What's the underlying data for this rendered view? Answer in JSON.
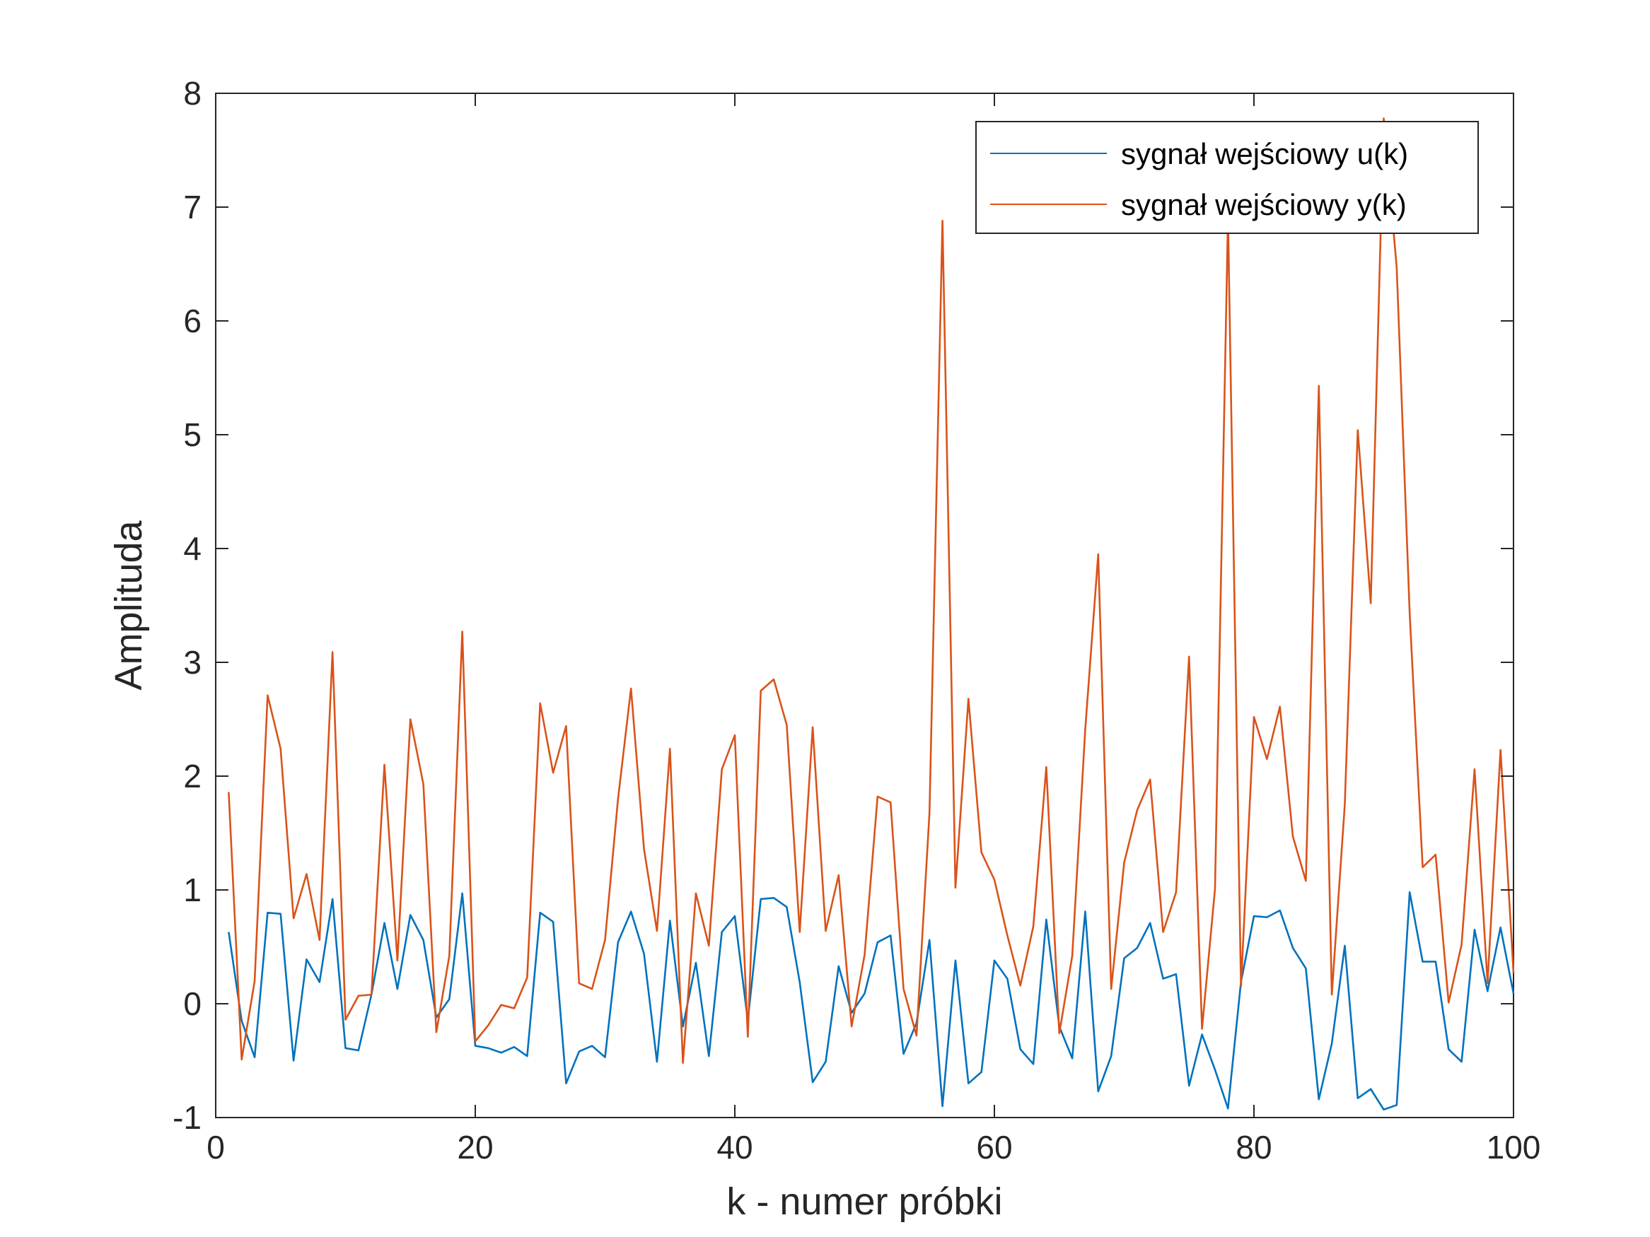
{
  "chart_data": {
    "type": "line",
    "title": "",
    "xlabel": "k - numer próbki",
    "ylabel": "Amplituda",
    "xlim": [
      0,
      100
    ],
    "ylim": [
      -1,
      8
    ],
    "xticks": [
      0,
      20,
      40,
      60,
      80,
      100
    ],
    "yticks": [
      -1,
      0,
      1,
      2,
      3,
      4,
      5,
      6,
      7,
      8
    ],
    "grid": false,
    "legend_position": "top-right",
    "x": [
      1,
      2,
      3,
      4,
      5,
      6,
      7,
      8,
      9,
      10,
      11,
      12,
      13,
      14,
      15,
      16,
      17,
      18,
      19,
      20,
      21,
      22,
      23,
      24,
      25,
      26,
      27,
      28,
      29,
      30,
      31,
      32,
      33,
      34,
      35,
      36,
      37,
      38,
      39,
      40,
      41,
      42,
      43,
      44,
      45,
      46,
      47,
      48,
      49,
      50,
      51,
      52,
      53,
      54,
      55,
      56,
      57,
      58,
      59,
      60,
      61,
      62,
      63,
      64,
      65,
      66,
      67,
      68,
      69,
      70,
      71,
      72,
      73,
      74,
      75,
      76,
      77,
      78,
      79,
      80,
      81,
      82,
      83,
      84,
      85,
      86,
      87,
      88,
      89,
      90,
      91,
      92,
      93,
      94,
      95,
      96,
      97,
      98,
      99,
      100
    ],
    "series": [
      {
        "name": "sygnał wejściowy u(k)",
        "color": "#0072BD",
        "values": [
          0.63,
          -0.15,
          -0.47,
          0.8,
          0.79,
          -0.5,
          0.39,
          0.19,
          0.92,
          -0.39,
          -0.41,
          0.08,
          0.71,
          0.13,
          0.78,
          0.56,
          -0.12,
          0.04,
          0.97,
          -0.37,
          -0.39,
          -0.43,
          -0.38,
          -0.46,
          0.8,
          0.72,
          -0.7,
          -0.42,
          -0.37,
          -0.47,
          0.54,
          0.81,
          0.44,
          -0.51,
          0.73,
          -0.2,
          0.36,
          -0.46,
          0.63,
          0.77,
          -0.15,
          0.92,
          0.93,
          0.85,
          0.19,
          -0.69,
          -0.51,
          0.33,
          -0.08,
          0.09,
          0.54,
          0.6,
          -0.44,
          -0.17,
          0.56,
          -0.9,
          0.38,
          -0.7,
          -0.6,
          0.38,
          0.22,
          -0.4,
          -0.53,
          0.74,
          -0.2,
          -0.48,
          0.81,
          -0.77,
          -0.46,
          0.4,
          0.49,
          0.71,
          0.22,
          0.26,
          -0.72,
          -0.27,
          -0.58,
          -0.92,
          0.19,
          0.77,
          0.76,
          0.82,
          0.49,
          0.31,
          -0.84,
          -0.35,
          0.51,
          -0.83,
          -0.75,
          -0.93,
          -0.89,
          0.98,
          0.37,
          0.37,
          -0.4,
          -0.51,
          0.65,
          0.11,
          0.67,
          0.09
        ]
      },
      {
        "name": "sygnał wejściowy y(k)",
        "color": "#D95319",
        "values": [
          1.86,
          -0.49,
          0.2,
          2.71,
          2.24,
          0.75,
          1.14,
          0.56,
          3.09,
          -0.14,
          0.07,
          0.08,
          2.1,
          0.38,
          2.5,
          1.93,
          -0.25,
          0.42,
          3.27,
          -0.33,
          -0.19,
          -0.01,
          -0.04,
          0.23,
          2.64,
          2.03,
          2.44,
          0.18,
          0.13,
          0.56,
          1.8,
          2.77,
          1.36,
          0.64,
          2.24,
          -0.52,
          0.97,
          0.51,
          2.06,
          2.36,
          -0.29,
          2.75,
          2.85,
          2.45,
          0.63,
          2.43,
          0.64,
          1.13,
          -0.2,
          0.43,
          1.82,
          1.77,
          0.13,
          -0.28,
          1.68,
          6.88,
          1.02,
          2.68,
          1.33,
          1.09,
          0.6,
          0.16,
          0.68,
          2.08,
          -0.26,
          0.42,
          2.41,
          3.95,
          0.13,
          1.24,
          1.7,
          1.97,
          0.63,
          0.98,
          3.05,
          -0.22,
          1.01,
          6.92,
          0.15,
          2.52,
          2.15,
          2.61,
          1.47,
          1.08,
          5.43,
          0.08,
          1.75,
          5.04,
          3.52,
          7.78,
          6.47,
          3.43,
          1.2,
          1.31,
          0.01,
          0.52,
          2.06,
          0.18,
          2.23,
          0.27
        ]
      }
    ]
  }
}
